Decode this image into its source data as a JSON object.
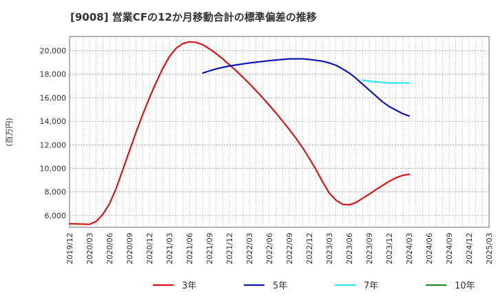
{
  "chart_data": {
    "type": "line",
    "title": "[9008]  営業CFの12か月移動合計の標準偏差の推移",
    "ylabel": "(百万円)",
    "xlabel": "",
    "ylim": [
      5000,
      21200
    ],
    "yticks": [
      6000,
      8000,
      10000,
      12000,
      14000,
      16000,
      18000,
      20000
    ],
    "ytick_labels": [
      "6,000",
      "8,000",
      "10,000",
      "12,000",
      "14,000",
      "16,000",
      "18,000",
      "20,000"
    ],
    "xlim": [
      "2019-12",
      "2025-03"
    ],
    "xtick_labels": [
      "2019/12",
      "2020/03",
      "2020/06",
      "2020/09",
      "2020/12",
      "2021/03",
      "2021/06",
      "2021/09",
      "2021/12",
      "2022/03",
      "2022/06",
      "2022/09",
      "2022/12",
      "2023/03",
      "2023/06",
      "2023/09",
      "2023/12",
      "2024/03",
      "2024/06",
      "2024/09",
      "2024/12",
      "2025/03"
    ],
    "grid": true,
    "legend_position": "bottom",
    "series": [
      {
        "name": "3年",
        "color": "#dd1111",
        "points": [
          [
            "2019-12",
            5300
          ],
          [
            "2020-03",
            5250
          ],
          [
            "2020-04",
            5500
          ],
          [
            "2020-05",
            6100
          ],
          [
            "2020-06",
            7000
          ],
          [
            "2020-07",
            8300
          ],
          [
            "2020-08",
            9900
          ],
          [
            "2020-09",
            11500
          ],
          [
            "2020-10",
            13100
          ],
          [
            "2020-11",
            14600
          ],
          [
            "2020-12",
            16000
          ],
          [
            "2021-01",
            17300
          ],
          [
            "2021-02",
            18500
          ],
          [
            "2021-03",
            19500
          ],
          [
            "2021-04",
            20200
          ],
          [
            "2021-05",
            20600
          ],
          [
            "2021-06",
            20750
          ],
          [
            "2021-07",
            20700
          ],
          [
            "2021-08",
            20500
          ],
          [
            "2021-09",
            20150
          ],
          [
            "2021-10",
            19750
          ],
          [
            "2021-11",
            19300
          ],
          [
            "2021-12",
            18800
          ],
          [
            "2022-01",
            18300
          ],
          [
            "2022-02",
            17750
          ],
          [
            "2022-03",
            17200
          ],
          [
            "2022-04",
            16600
          ],
          [
            "2022-05",
            16000
          ],
          [
            "2022-06",
            15350
          ],
          [
            "2022-07",
            14700
          ],
          [
            "2022-08",
            14000
          ],
          [
            "2022-09",
            13300
          ],
          [
            "2022-10",
            12550
          ],
          [
            "2022-11",
            11750
          ],
          [
            "2022-12",
            10850
          ],
          [
            "2023-01",
            9900
          ],
          [
            "2023-02",
            8850
          ],
          [
            "2023-03",
            7900
          ],
          [
            "2023-04",
            7300
          ],
          [
            "2023-05",
            6950
          ],
          [
            "2023-06",
            6900
          ],
          [
            "2023-07",
            7100
          ],
          [
            "2023-08",
            7450
          ],
          [
            "2023-09",
            7800
          ],
          [
            "2023-10",
            8200
          ],
          [
            "2023-11",
            8550
          ],
          [
            "2023-12",
            8900
          ],
          [
            "2024-01",
            9200
          ],
          [
            "2024-02",
            9400
          ],
          [
            "2024-03",
            9500
          ]
        ]
      },
      {
        "name": "5年",
        "color": "#0a14b4",
        "points": [
          [
            "2021-08",
            18100
          ],
          [
            "2021-10",
            18450
          ],
          [
            "2021-12",
            18700
          ],
          [
            "2022-03",
            18950
          ],
          [
            "2022-06",
            19150
          ],
          [
            "2022-09",
            19300
          ],
          [
            "2022-11",
            19300
          ],
          [
            "2022-12",
            19250
          ],
          [
            "2023-02",
            19100
          ],
          [
            "2023-03",
            18950
          ],
          [
            "2023-04",
            18750
          ],
          [
            "2023-05",
            18450
          ],
          [
            "2023-06",
            18100
          ],
          [
            "2023-07",
            17650
          ],
          [
            "2023-08",
            17150
          ],
          [
            "2023-09",
            16650
          ],
          [
            "2023-10",
            16150
          ],
          [
            "2023-11",
            15650
          ],
          [
            "2023-12",
            15250
          ],
          [
            "2024-01",
            14950
          ],
          [
            "2024-02",
            14650
          ],
          [
            "2024-03",
            14450
          ]
        ]
      },
      {
        "name": "7年",
        "color": "#22e5ee",
        "points": [
          [
            "2023-08",
            17500
          ],
          [
            "2023-09",
            17400
          ],
          [
            "2023-10",
            17350
          ],
          [
            "2023-11",
            17300
          ],
          [
            "2023-12",
            17250
          ],
          [
            "2024-01",
            17250
          ],
          [
            "2024-02",
            17250
          ],
          [
            "2024-03",
            17250
          ]
        ]
      },
      {
        "name": "10年",
        "color": "#228822",
        "points": []
      }
    ]
  }
}
